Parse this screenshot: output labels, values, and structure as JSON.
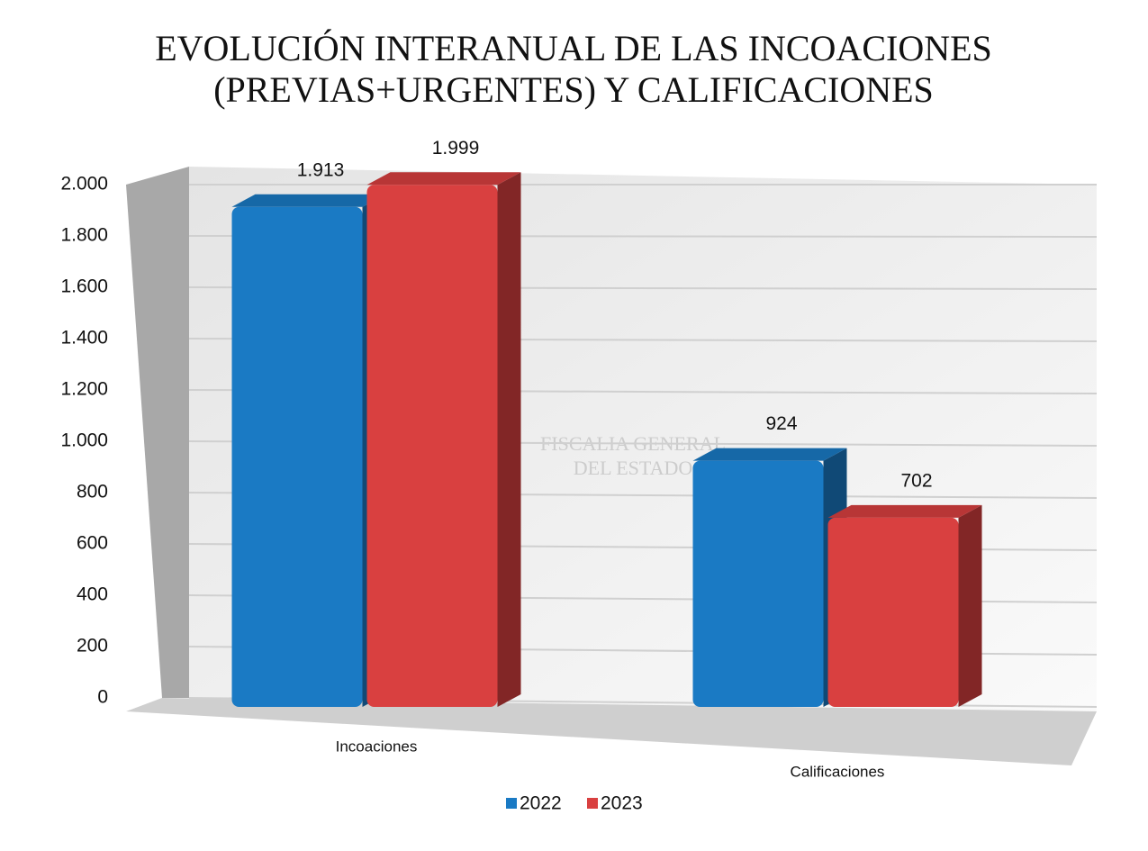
{
  "chart_data": {
    "type": "bar3d",
    "title": [
      "EVOLUCIÓN INTERANUAL DE LAS INCOACIONES",
      "(PREVIAS+URGENTES) Y CALIFICACIONES"
    ],
    "watermark": [
      "FISCALIA GENERAL",
      "DEL ESTADO"
    ],
    "categories": [
      "Incoaciones",
      "Calificaciones"
    ],
    "series": [
      {
        "name": "2022",
        "color": "#1a7ac4",
        "values": [
          1913,
          924
        ],
        "value_labels": [
          "1.913",
          "924"
        ]
      },
      {
        "name": "2023",
        "color": "#d94040",
        "values": [
          1999,
          702
        ],
        "value_labels": [
          "1.999",
          "702"
        ]
      }
    ],
    "ylim": [
      0,
      2000
    ],
    "yticks": [
      0,
      200,
      400,
      600,
      800,
      {
        "value": 1000,
        "label": "1.000"
      },
      {
        "value": 1200,
        "label": "1.200"
      },
      {
        "value": 1400,
        "label": "1.400"
      },
      {
        "value": 1600,
        "label": "1.600"
      },
      {
        "value": 1800,
        "label": "1.800"
      },
      {
        "value": 2000,
        "label": "2.000"
      }
    ],
    "grid": true,
    "legend": "bottom"
  }
}
